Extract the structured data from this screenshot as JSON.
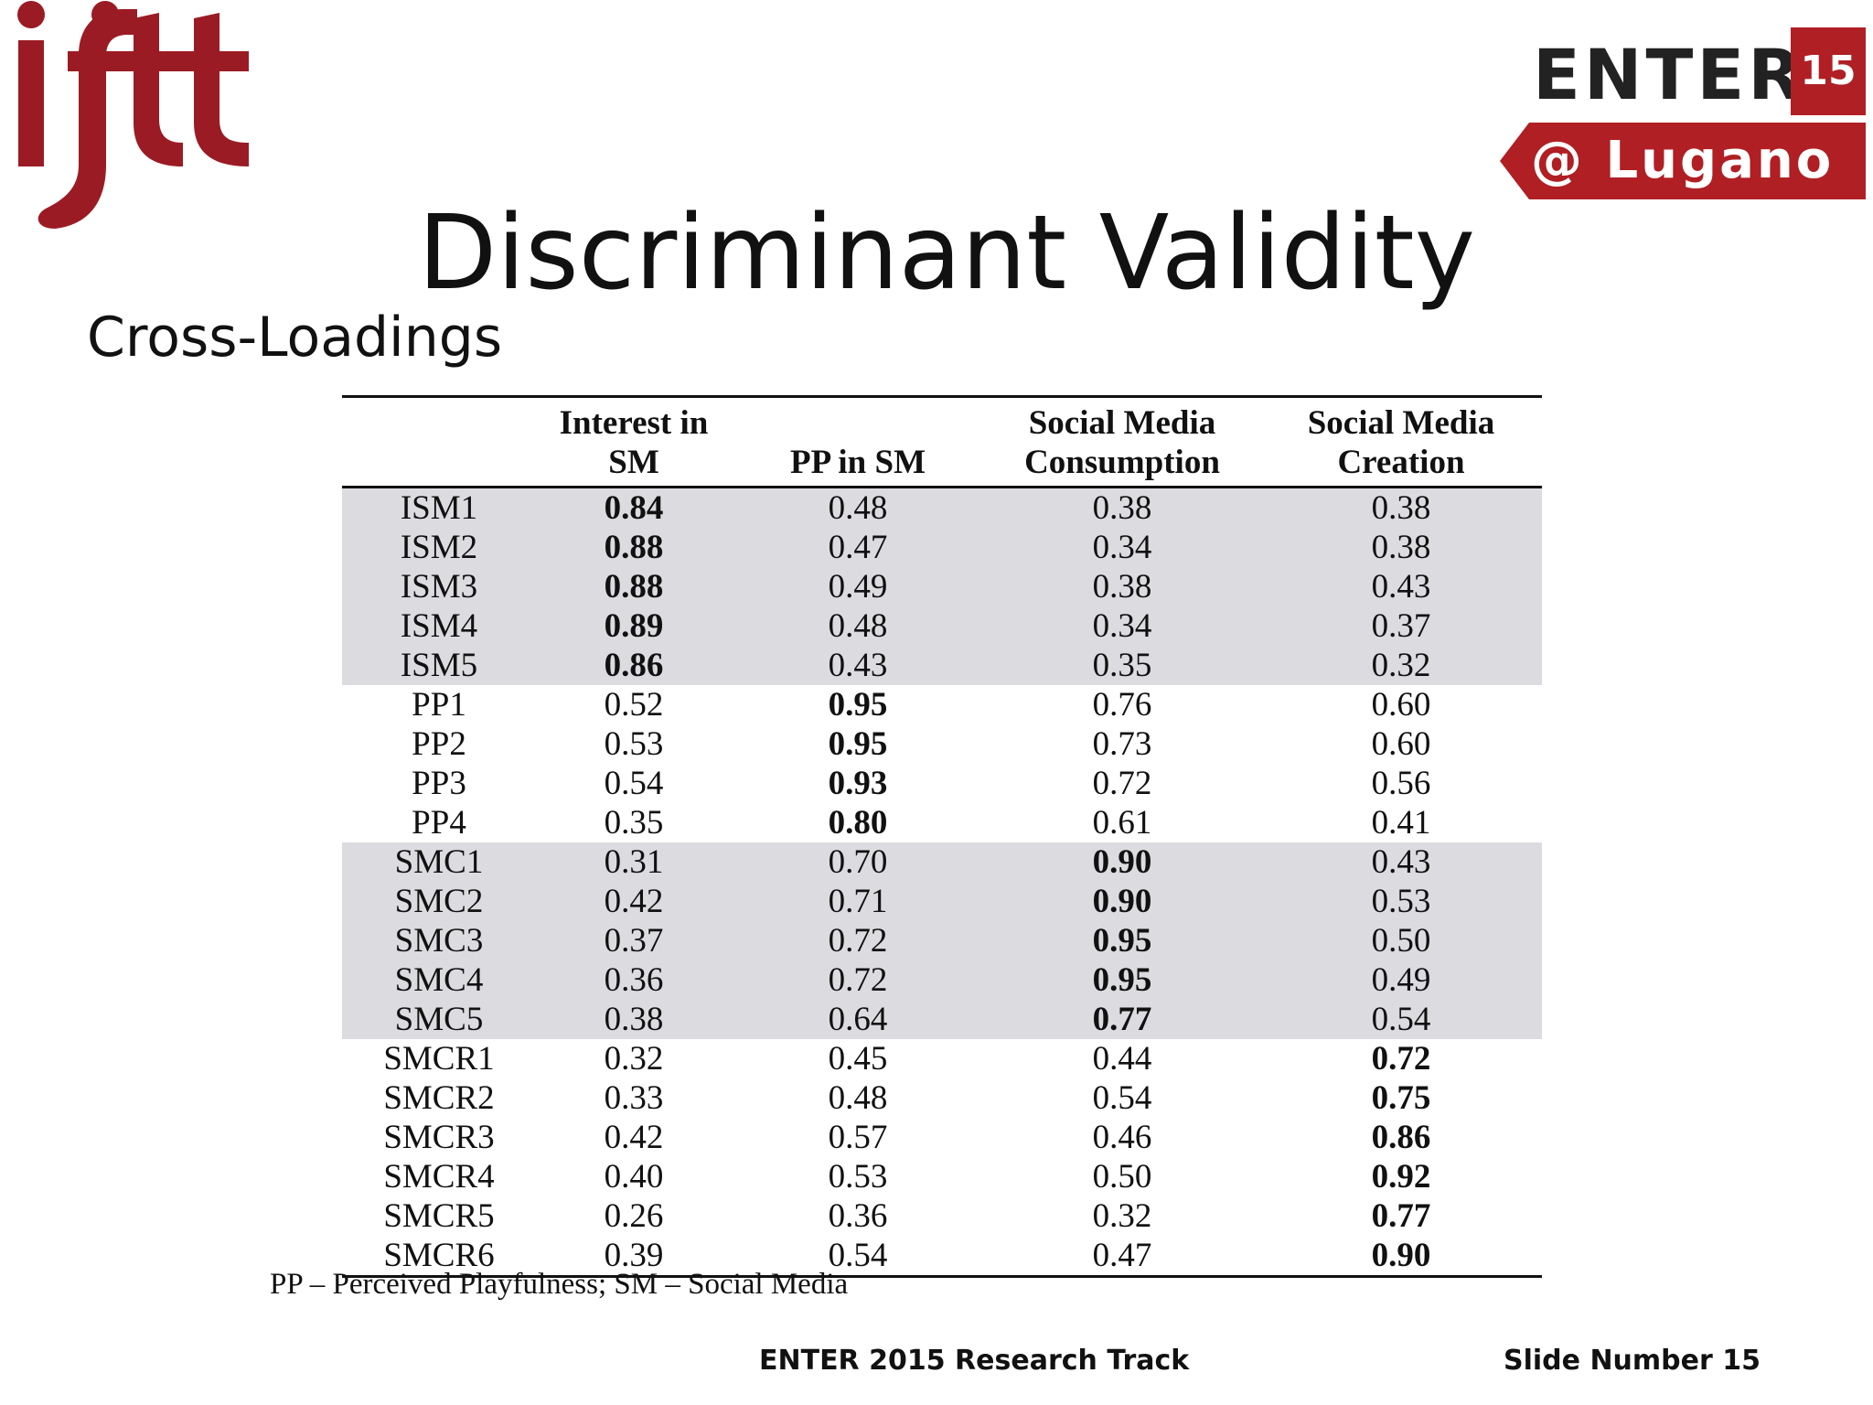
{
  "header": {
    "ifitt_logo_text": "ifitt",
    "enter_logo": {
      "word": "ENTER",
      "number": "15",
      "location": "@ Lugano"
    },
    "colors": {
      "brand_red": "#b01f24",
      "row_shade": "#dcdce0"
    }
  },
  "slide": {
    "title": "Discriminant Validity",
    "subtitle": "Cross-Loadings"
  },
  "table": {
    "headers": [
      {
        "line1": "",
        "line2": ""
      },
      {
        "line1": "Interest in",
        "line2": "SM"
      },
      {
        "line1": "",
        "line2": "PP in SM"
      },
      {
        "line1": "Social Media",
        "line2": "Consumption"
      },
      {
        "line1": "Social Media",
        "line2": "Creation"
      }
    ],
    "rows": [
      {
        "label": "ISM1",
        "values": [
          "0.84",
          "0.48",
          "0.38",
          "0.38"
        ],
        "bold_col": 0,
        "shaded": true
      },
      {
        "label": "ISM2",
        "values": [
          "0.88",
          "0.47",
          "0.34",
          "0.38"
        ],
        "bold_col": 0,
        "shaded": true
      },
      {
        "label": "ISM3",
        "values": [
          "0.88",
          "0.49",
          "0.38",
          "0.43"
        ],
        "bold_col": 0,
        "shaded": true
      },
      {
        "label": "ISM4",
        "values": [
          "0.89",
          "0.48",
          "0.34",
          "0.37"
        ],
        "bold_col": 0,
        "shaded": true
      },
      {
        "label": "ISM5",
        "values": [
          "0.86",
          "0.43",
          "0.35",
          "0.32"
        ],
        "bold_col": 0,
        "shaded": true
      },
      {
        "label": "PP1",
        "values": [
          "0.52",
          "0.95",
          "0.76",
          "0.60"
        ],
        "bold_col": 1,
        "shaded": false
      },
      {
        "label": "PP2",
        "values": [
          "0.53",
          "0.95",
          "0.73",
          "0.60"
        ],
        "bold_col": 1,
        "shaded": false
      },
      {
        "label": "PP3",
        "values": [
          "0.54",
          "0.93",
          "0.72",
          "0.56"
        ],
        "bold_col": 1,
        "shaded": false
      },
      {
        "label": "PP4",
        "values": [
          "0.35",
          "0.80",
          "0.61",
          "0.41"
        ],
        "bold_col": 1,
        "shaded": false
      },
      {
        "label": "SMC1",
        "values": [
          "0.31",
          "0.70",
          "0.90",
          "0.43"
        ],
        "bold_col": 2,
        "shaded": true
      },
      {
        "label": "SMC2",
        "values": [
          "0.42",
          "0.71",
          "0.90",
          "0.53"
        ],
        "bold_col": 2,
        "shaded": true
      },
      {
        "label": "SMC3",
        "values": [
          "0.37",
          "0.72",
          "0.95",
          "0.50"
        ],
        "bold_col": 2,
        "shaded": true
      },
      {
        "label": "SMC4",
        "values": [
          "0.36",
          "0.72",
          "0.95",
          "0.49"
        ],
        "bold_col": 2,
        "shaded": true
      },
      {
        "label": "SMC5",
        "values": [
          "0.38",
          "0.64",
          "0.77",
          "0.54"
        ],
        "bold_col": 2,
        "shaded": true
      },
      {
        "label": "SMCR1",
        "values": [
          "0.32",
          "0.45",
          "0.44",
          "0.72"
        ],
        "bold_col": 3,
        "shaded": false
      },
      {
        "label": "SMCR2",
        "values": [
          "0.33",
          "0.48",
          "0.54",
          "0.75"
        ],
        "bold_col": 3,
        "shaded": false
      },
      {
        "label": "SMCR3",
        "values": [
          "0.42",
          "0.57",
          "0.46",
          "0.86"
        ],
        "bold_col": 3,
        "shaded": false
      },
      {
        "label": "SMCR4",
        "values": [
          "0.40",
          "0.53",
          "0.50",
          "0.92"
        ],
        "bold_col": 3,
        "shaded": false
      },
      {
        "label": "SMCR5",
        "values": [
          "0.26",
          "0.36",
          "0.32",
          "0.77"
        ],
        "bold_col": 3,
        "shaded": false
      },
      {
        "label": "SMCR6",
        "values": [
          "0.39",
          "0.54",
          "0.47",
          "0.90"
        ],
        "bold_col": 3,
        "shaded": false
      }
    ],
    "footnote": "PP – Perceived Playfulness; SM – Social Media"
  },
  "footer": {
    "track": "ENTER 2015 Research Track",
    "slide_number": "Slide Number 15"
  }
}
